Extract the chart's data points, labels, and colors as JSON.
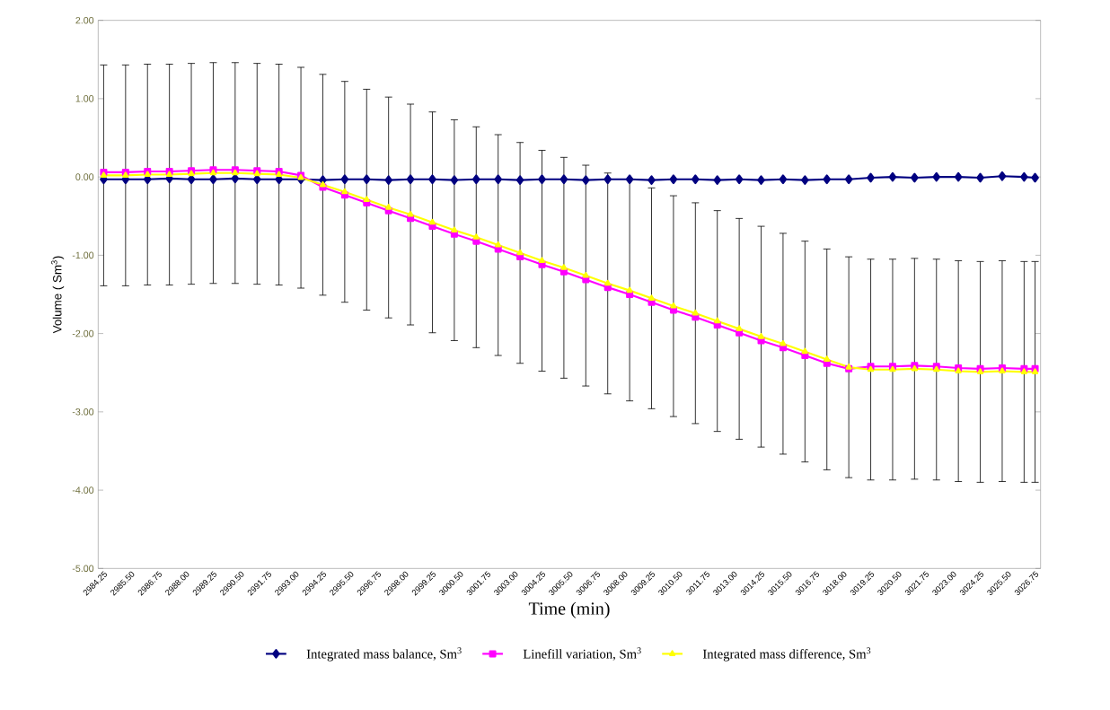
{
  "chart_data": {
    "type": "line",
    "xlabel": "Time (min)",
    "ylabel": "Volume ( Sm$^{3}$)",
    "x": [
      2984.25,
      2985.25,
      2986.25,
      2987.25,
      2988.25,
      2989.25,
      2990.25,
      2991.25,
      2992.25,
      2993.25,
      2994.25,
      2995.25,
      2996.25,
      2997.25,
      2998.25,
      2999.25,
      3000.25,
      3001.25,
      3002.25,
      3003.25,
      3004.25,
      3005.25,
      3006.25,
      3007.25,
      3008.25,
      3009.25,
      3010.25,
      3011.25,
      3012.25,
      3013.25,
      3014.25,
      3015.25,
      3016.25,
      3017.25,
      3018.25,
      3019.25,
      3020.25,
      3021.25,
      3022.25,
      3023.25,
      3024.25,
      3025.25,
      3026.25,
      3026.75
    ],
    "series": [
      {
        "name": "Integrated mass balance, Sm$^{3}$",
        "color": "#000080",
        "marker": "diamond",
        "values": [
          -0.03,
          -0.03,
          -0.03,
          -0.02,
          -0.03,
          -0.03,
          -0.02,
          -0.03,
          -0.03,
          -0.03,
          -0.04,
          -0.03,
          -0.03,
          -0.04,
          -0.03,
          -0.03,
          -0.04,
          -0.03,
          -0.03,
          -0.04,
          -0.03,
          -0.03,
          -0.04,
          -0.03,
          -0.03,
          -0.04,
          -0.03,
          -0.03,
          -0.04,
          -0.03,
          -0.04,
          -0.03,
          -0.04,
          -0.03,
          -0.03,
          -0.01,
          0.0,
          -0.01,
          0.0,
          0.0,
          -0.01,
          0.01,
          0.0,
          -0.01
        ]
      },
      {
        "name": "Linefill variation, Sm$^{3}$",
        "color": "#ff00ff",
        "marker": "square",
        "values": [
          0.06,
          0.06,
          0.07,
          0.07,
          0.08,
          0.09,
          0.09,
          0.08,
          0.07,
          0.02,
          -0.13,
          -0.23,
          -0.33,
          -0.43,
          -0.53,
          -0.63,
          -0.73,
          -0.82,
          -0.92,
          -1.02,
          -1.12,
          -1.21,
          -1.31,
          -1.41,
          -1.5,
          -1.6,
          -1.7,
          -1.79,
          -1.89,
          -1.99,
          -2.09,
          -2.18,
          -2.28,
          -2.38,
          -2.45,
          -2.42,
          -2.42,
          -2.41,
          -2.42,
          -2.44,
          -2.45,
          -2.44,
          -2.45,
          -2.45
        ]
      },
      {
        "name": "Integrated mass difference, Sm$^{3}$",
        "color": "#ffff00",
        "marker": "triangle",
        "values": [
          0.02,
          0.02,
          0.03,
          0.03,
          0.04,
          0.05,
          0.05,
          0.04,
          0.03,
          -0.01,
          -0.1,
          -0.19,
          -0.29,
          -0.39,
          -0.48,
          -0.58,
          -0.68,
          -0.77,
          -0.87,
          -0.97,
          -1.07,
          -1.16,
          -1.26,
          -1.36,
          -1.45,
          -1.55,
          -1.65,
          -1.74,
          -1.84,
          -1.94,
          -2.04,
          -2.13,
          -2.23,
          -2.33,
          -2.43,
          -2.46,
          -2.46,
          -2.45,
          -2.46,
          -2.48,
          -2.49,
          -2.48,
          -2.49,
          -2.49
        ],
        "errors": [
          1.41,
          1.41,
          1.41,
          1.41,
          1.41,
          1.41,
          1.41,
          1.41,
          1.41,
          1.41,
          1.41,
          1.41,
          1.41,
          1.41,
          1.41,
          1.41,
          1.41,
          1.41,
          1.41,
          1.41,
          1.41,
          1.41,
          1.41,
          1.41,
          1.41,
          1.41,
          1.41,
          1.41,
          1.41,
          1.41,
          1.41,
          1.41,
          1.41,
          1.41,
          1.41,
          1.41,
          1.41,
          1.41,
          1.41,
          1.41,
          1.41,
          1.41,
          1.41,
          1.41
        ]
      }
    ],
    "xlim": [
      2984,
      3027
    ],
    "xticks": [
      2984.25,
      {
        "value": 2985.5,
        "label": "2985.50"
      },
      2986.75,
      {
        "value": 2988,
        "label": "2988.00"
      },
      2989.25,
      {
        "value": 2990.5,
        "label": "2990.50"
      },
      2991.75,
      {
        "value": 2993,
        "label": "2993.00"
      },
      2994.25,
      {
        "value": 2995.5,
        "label": "2995.50"
      },
      2996.75,
      {
        "value": 2998,
        "label": "2998.00"
      },
      2999.25,
      {
        "value": 3000.5,
        "label": "3000.50"
      },
      3001.75,
      {
        "value": 3003,
        "label": "3003.00"
      },
      3004.25,
      {
        "value": 3005.5,
        "label": "3005.50"
      },
      3006.75,
      {
        "value": 3008,
        "label": "3008.00"
      },
      3009.25,
      {
        "value": 3010.5,
        "label": "3010.50"
      },
      3011.75,
      {
        "value": 3013,
        "label": "3013.00"
      },
      3014.25,
      {
        "value": 3015.5,
        "label": "3015.50"
      },
      3016.75,
      {
        "value": 3018,
        "label": "3018.00"
      },
      3019.25,
      {
        "value": 3020.5,
        "label": "3020.50"
      },
      3021.75,
      {
        "value": 3023,
        "label": "3023.00"
      },
      3024.25,
      {
        "value": 3025.5,
        "label": "3025.50"
      },
      3026.75
    ],
    "ylim": [
      -5,
      2
    ],
    "yticks": [
      {
        "value": -5,
        "label": "-5.00"
      },
      {
        "value": -4,
        "label": "-4.00"
      },
      {
        "value": -3,
        "label": "-3.00"
      },
      {
        "value": -2,
        "label": "-2.00"
      },
      {
        "value": -1,
        "label": "-1.00"
      },
      {
        "value": 0,
        "label": "0.00"
      },
      {
        "value": 1,
        "label": "1.00"
      },
      {
        "value": 2,
        "label": "2.00"
      }
    ],
    "grid": false,
    "legend": "bottom",
    "line_style": "solid"
  }
}
